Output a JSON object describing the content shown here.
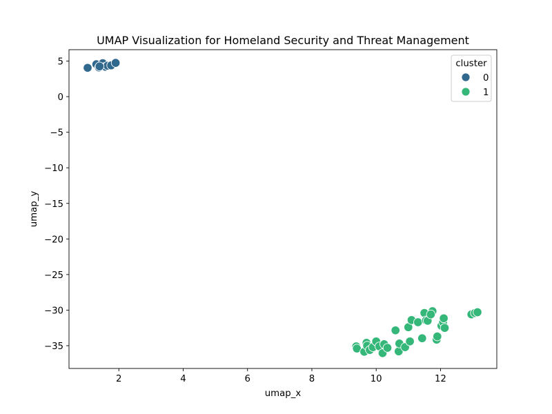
{
  "chart_data": {
    "type": "scatter",
    "title": "UMAP Visualization for Homeland Security and Threat Management",
    "xlabel": "umap_x",
    "ylabel": "umap_y",
    "xlim": [
      0.45,
      13.75
    ],
    "ylim": [
      -38.2,
      6.6
    ],
    "xticks": [
      2,
      4,
      6,
      8,
      10,
      12
    ],
    "yticks": [
      5,
      0,
      -5,
      -10,
      -15,
      -20,
      -25,
      -30,
      -35
    ],
    "xtick_labels": [
      "2",
      "4",
      "6",
      "8",
      "10",
      "12"
    ],
    "ytick_labels": [
      "5",
      "0",
      "−5",
      "−10",
      "−15",
      "−20",
      "−25",
      "−30",
      "−35"
    ],
    "grid": false,
    "legend": {
      "title": "cluster",
      "placement": "top-right",
      "entries": [
        {
          "label": "0",
          "color": "#31688e"
        },
        {
          "label": "1",
          "color": "#35b779"
        }
      ]
    },
    "series": [
      {
        "name": "0",
        "color": "#31688e",
        "points": [
          [
            1.03,
            4.05
          ],
          [
            1.3,
            4.55
          ],
          [
            1.38,
            4.1
          ],
          [
            1.45,
            4.4
          ],
          [
            1.5,
            4.7
          ],
          [
            1.58,
            4.2
          ],
          [
            1.65,
            4.35
          ],
          [
            1.76,
            4.4
          ],
          [
            1.9,
            4.75
          ],
          [
            1.4,
            4.25
          ]
        ]
      },
      {
        "name": "1",
        "color": "#35b779",
        "points": [
          [
            9.38,
            -35.1
          ],
          [
            9.4,
            -35.4
          ],
          [
            9.63,
            -35.85
          ],
          [
            9.7,
            -34.6
          ],
          [
            9.72,
            -35.0
          ],
          [
            9.8,
            -35.6
          ],
          [
            9.9,
            -35.2
          ],
          [
            10.0,
            -34.4
          ],
          [
            10.1,
            -35.1
          ],
          [
            10.2,
            -36.05
          ],
          [
            10.25,
            -34.8
          ],
          [
            10.35,
            -35.3
          ],
          [
            10.6,
            -32.85
          ],
          [
            10.7,
            -35.8
          ],
          [
            10.72,
            -34.7
          ],
          [
            10.9,
            -35.2
          ],
          [
            11.0,
            -32.4
          ],
          [
            11.05,
            -34.4
          ],
          [
            11.1,
            -31.4
          ],
          [
            11.3,
            -31.7
          ],
          [
            11.43,
            -33.95
          ],
          [
            11.5,
            -30.4
          ],
          [
            11.55,
            -31.45
          ],
          [
            11.6,
            -31.5
          ],
          [
            11.75,
            -30.15
          ],
          [
            11.7,
            -30.6
          ],
          [
            11.88,
            -34.15
          ],
          [
            11.9,
            -33.7
          ],
          [
            12.03,
            -32.2
          ],
          [
            12.08,
            -31.7
          ],
          [
            12.1,
            -31.15
          ],
          [
            12.13,
            -32.5
          ],
          [
            12.96,
            -30.6
          ],
          [
            13.07,
            -30.4
          ],
          [
            13.15,
            -30.3
          ]
        ]
      }
    ]
  }
}
